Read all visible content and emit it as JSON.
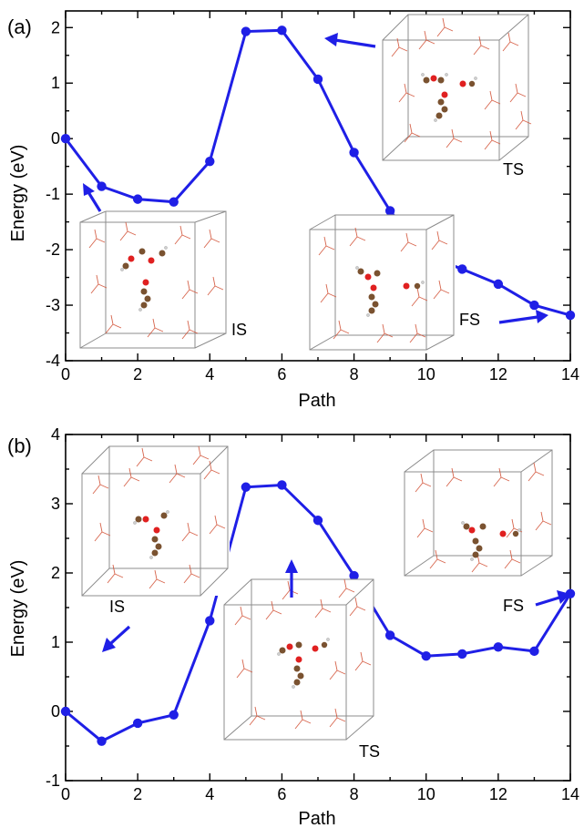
{
  "chart_data": [
    {
      "panel": "(a)",
      "type": "line",
      "xlabel": "Path",
      "ylabel": "Energy (eV)",
      "xlim": [
        0,
        14
      ],
      "ylim": [
        -4,
        2.3
      ],
      "xticks": [
        0,
        2,
        4,
        6,
        8,
        10,
        12,
        14
      ],
      "yticks": [
        -4,
        -3,
        -2,
        -1,
        0,
        1,
        2
      ],
      "x": [
        0,
        1,
        2,
        3,
        4,
        5,
        6,
        7,
        8,
        9,
        10,
        11,
        12,
        13,
        14
      ],
      "y": [
        0.0,
        -0.86,
        -1.09,
        -1.14,
        -0.41,
        1.93,
        1.95,
        1.07,
        -0.25,
        -1.3,
        -2.1,
        -2.35,
        -2.62,
        -3.0,
        -3.18
      ],
      "color": "#1f1fe6",
      "annotations": [
        {
          "label": "TS",
          "points_to_x": 6.9
        },
        {
          "label": "IS",
          "points_to_x": 0.5
        },
        {
          "label": "FS",
          "points_to_x": 14
        }
      ]
    },
    {
      "panel": "(b)",
      "type": "line",
      "xlabel": "Path",
      "ylabel": "Energy (eV)",
      "xlim": [
        0,
        14
      ],
      "ylim": [
        -1,
        4
      ],
      "xticks": [
        0,
        2,
        4,
        6,
        8,
        10,
        12,
        14
      ],
      "yticks": [
        -1,
        0,
        1,
        2,
        3,
        4
      ],
      "x": [
        0,
        1,
        2,
        3,
        4,
        5,
        6,
        7,
        8,
        9,
        10,
        11,
        12,
        13,
        14
      ],
      "y": [
        0.0,
        -0.43,
        -0.17,
        -0.05,
        1.31,
        3.24,
        3.27,
        2.76,
        1.96,
        1.1,
        0.8,
        0.83,
        0.93,
        0.87,
        1.7
      ],
      "color": "#1f1fe6",
      "annotations": [
        {
          "label": "IS",
          "points_to_x": 1
        },
        {
          "label": "TS",
          "points_to_x": 6
        },
        {
          "label": "FS",
          "points_to_x": 14
        }
      ]
    }
  ]
}
